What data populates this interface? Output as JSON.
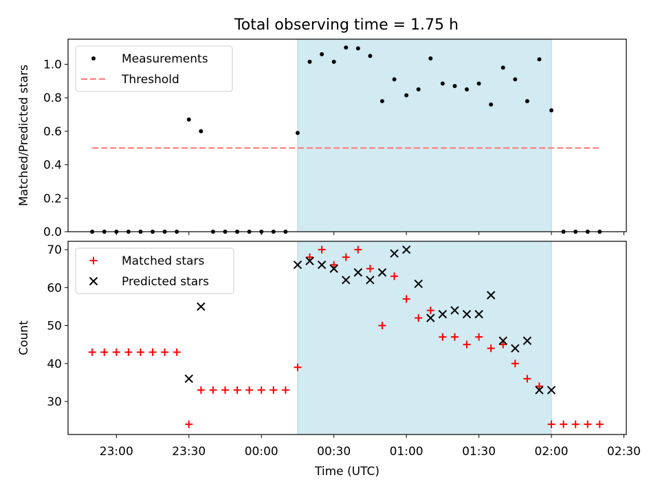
{
  "title": "Total observing time = 1.75 h",
  "colors": {
    "measurement": "#000000",
    "threshold": "#ff7777",
    "matched": "#ff0000",
    "predicted": "#000000",
    "shade": "#add8e6"
  },
  "chart_data": [
    {
      "type": "scatter",
      "ylabel": "Matched/Predicted stars",
      "ylim": [
        0,
        1.15
      ],
      "yticks": [
        0.0,
        0.2,
        0.4,
        0.6,
        0.8,
        1.0
      ],
      "ytick_labels": [
        "0.0",
        "0.2",
        "0.4",
        "0.6",
        "0.8",
        "1.0"
      ],
      "xlim": [
        "22:40",
        "02:31"
      ],
      "shaded_interval": [
        "00:15",
        "02:00"
      ],
      "legend": {
        "placement": "upper-left",
        "entries": [
          "Measurements",
          "Threshold"
        ]
      },
      "series": [
        {
          "name": "Measurements",
          "marker": "dot",
          "x": [
            "22:50",
            "22:55",
            "23:00",
            "23:05",
            "23:10",
            "23:15",
            "23:20",
            "23:25",
            "23:30",
            "23:35",
            "23:40",
            "23:45",
            "23:50",
            "23:55",
            "00:00",
            "00:05",
            "00:10",
            "00:15",
            "00:20",
            "00:25",
            "00:30",
            "00:35",
            "00:40",
            "00:45",
            "00:50",
            "00:55",
            "01:00",
            "01:05",
            "01:10",
            "01:15",
            "01:20",
            "01:25",
            "01:30",
            "01:35",
            "01:40",
            "01:45",
            "01:50",
            "01:55",
            "02:00",
            "02:05",
            "02:10",
            "02:15",
            "02:20"
          ],
          "y": [
            0,
            0,
            0,
            0,
            0,
            0,
            0,
            0,
            0.67,
            0.6,
            0,
            0,
            0,
            0,
            0,
            0,
            0,
            0.59,
            1.015,
            1.06,
            1.015,
            1.1,
            1.095,
            1.05,
            0.78,
            0.91,
            0.815,
            0.85,
            1.035,
            0.885,
            0.87,
            0.85,
            0.885,
            0.76,
            0.98,
            0.91,
            0.78,
            1.03,
            0.725,
            0,
            0,
            0,
            0
          ]
        },
        {
          "name": "Threshold",
          "style": "dashed",
          "x": [
            "22:50",
            "02:20"
          ],
          "y": [
            0.5,
            0.5
          ]
        }
      ]
    },
    {
      "type": "scatter",
      "xlabel": "Time (UTC)",
      "ylabel": "Count",
      "ylim": [
        21.3,
        72.2
      ],
      "yticks": [
        30,
        40,
        50,
        60,
        70
      ],
      "ytick_labels": [
        "30",
        "40",
        "50",
        "60",
        "70"
      ],
      "xlim": [
        "22:40",
        "02:31"
      ],
      "xticks": [
        "23:00",
        "23:30",
        "00:00",
        "00:30",
        "01:00",
        "01:30",
        "02:00",
        "02:30"
      ],
      "xtick_labels": [
        "23:00",
        "23:30",
        "00:00",
        "00:30",
        "01:00",
        "01:30",
        "02:00",
        "02:30"
      ],
      "shaded_interval": [
        "00:15",
        "02:00"
      ],
      "legend": {
        "placement": "upper-left",
        "entries": [
          "Matched stars",
          "Predicted stars"
        ]
      },
      "series": [
        {
          "name": "Matched stars",
          "marker": "plus",
          "x": [
            "22:50",
            "22:55",
            "23:00",
            "23:05",
            "23:10",
            "23:15",
            "23:20",
            "23:25",
            "23:30",
            "23:35",
            "23:40",
            "23:45",
            "23:50",
            "23:55",
            "00:00",
            "00:05",
            "00:10",
            "00:15",
            "00:20",
            "00:25",
            "00:30",
            "00:35",
            "00:40",
            "00:45",
            "00:50",
            "00:55",
            "01:00",
            "01:05",
            "01:10",
            "01:15",
            "01:20",
            "01:25",
            "01:30",
            "01:35",
            "01:40",
            "01:45",
            "01:50",
            "01:55",
            "02:00",
            "02:05",
            "02:10",
            "02:15",
            "02:20"
          ],
          "y": [
            43,
            43,
            43,
            43,
            43,
            43,
            43,
            43,
            24,
            33,
            33,
            33,
            33,
            33,
            33,
            33,
            33,
            39,
            68,
            70,
            66,
            68,
            70,
            65,
            50,
            63,
            57,
            52,
            54,
            47,
            47,
            45,
            47,
            44,
            45,
            40,
            36,
            34,
            24,
            24,
            24,
            24,
            24
          ]
        },
        {
          "name": "Predicted stars",
          "marker": "x",
          "x": [
            "23:30",
            "23:35",
            "00:15",
            "00:20",
            "00:25",
            "00:30",
            "00:35",
            "00:40",
            "00:45",
            "00:50",
            "00:55",
            "01:00",
            "01:05",
            "01:10",
            "01:15",
            "01:20",
            "01:25",
            "01:30",
            "01:35",
            "01:40",
            "01:45",
            "01:50",
            "01:55",
            "02:00"
          ],
          "y": [
            36,
            55,
            66,
            67,
            66,
            65,
            62,
            64,
            62,
            64,
            69,
            70,
            61,
            52,
            53,
            54,
            53,
            53,
            58,
            46,
            44,
            46,
            33,
            33
          ]
        }
      ]
    }
  ]
}
